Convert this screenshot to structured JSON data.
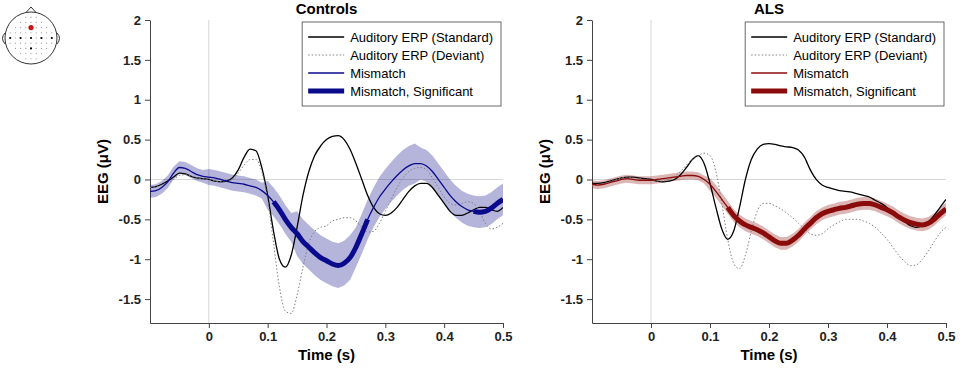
{
  "chart_data": [
    {
      "type": "line",
      "title": "Controls",
      "x_label": "Time (s)",
      "y_label": "EEG (μV)",
      "xlim": [
        -0.1,
        0.5
      ],
      "ylim": [
        -1.8,
        2
      ],
      "xticks": [
        0,
        0.1,
        0.2,
        0.3,
        0.4,
        0.5
      ],
      "yticks": [
        -1.5,
        -1,
        -0.5,
        0,
        0.5,
        1,
        1.5,
        2
      ],
      "vlines": [
        0
      ],
      "hlines": [
        0
      ],
      "legend": "upper right",
      "x": [
        -0.1,
        -0.09,
        -0.08,
        -0.07,
        -0.06,
        -0.05,
        -0.04,
        -0.03,
        -0.02,
        -0.01,
        0,
        0.01,
        0.02,
        0.03,
        0.04,
        0.05,
        0.06,
        0.07,
        0.08,
        0.09,
        0.1,
        0.11,
        0.12,
        0.13,
        0.14,
        0.15,
        0.16,
        0.17,
        0.18,
        0.19,
        0.2,
        0.21,
        0.22,
        0.23,
        0.24,
        0.25,
        0.26,
        0.27,
        0.28,
        0.29,
        0.3,
        0.31,
        0.32,
        0.33,
        0.34,
        0.35,
        0.36,
        0.37,
        0.38,
        0.39,
        0.4,
        0.41,
        0.42,
        0.43,
        0.44,
        0.45,
        0.46,
        0.47,
        0.48,
        0.49,
        0.5
      ],
      "series": [
        {
          "name": "Auditory ERP (Standard)",
          "color": "#000000",
          "line_style": "solid",
          "values": [
            -0.1,
            -0.09,
            -0.06,
            -0.02,
            0.03,
            0.08,
            0.07,
            0.04,
            0.02,
            0.01,
            0,
            -0.02,
            -0.03,
            -0.02,
            0.02,
            0.12,
            0.28,
            0.38,
            0.36,
            0.15,
            -0.2,
            -0.65,
            -1.0,
            -1.1,
            -0.95,
            -0.6,
            -0.2,
            0.1,
            0.3,
            0.42,
            0.5,
            0.54,
            0.55,
            0.5,
            0.38,
            0.2,
            0,
            -0.2,
            -0.35,
            -0.43,
            -0.45,
            -0.42,
            -0.35,
            -0.25,
            -0.15,
            -0.08,
            -0.05,
            -0.05,
            -0.1,
            -0.2,
            -0.3,
            -0.4,
            -0.45,
            -0.45,
            -0.42,
            -0.38,
            -0.35,
            -0.35,
            -0.38,
            -0.4,
            -0.35
          ]
        },
        {
          "name": "Auditory ERP (Deviant)",
          "color": "#808080",
          "line_style": "dotted",
          "values": [
            -0.1,
            -0.09,
            -0.07,
            -0.04,
            0,
            0.05,
            0.06,
            0.04,
            0.02,
            0.01,
            0,
            -0.02,
            -0.03,
            -0.03,
            0,
            0.08,
            0.18,
            0.25,
            0.25,
            0.1,
            -0.25,
            -0.8,
            -1.35,
            -1.65,
            -1.68,
            -1.45,
            -1.1,
            -0.8,
            -0.65,
            -0.6,
            -0.58,
            -0.52,
            -0.5,
            -0.48,
            -0.48,
            -0.52,
            -0.6,
            -0.66,
            -0.65,
            -0.55,
            -0.4,
            -0.25,
            -0.1,
            0.02,
            0.1,
            0.14,
            0.15,
            0.12,
            0.02,
            -0.1,
            -0.22,
            -0.3,
            -0.32,
            -0.3,
            -0.28,
            -0.3,
            -0.4,
            -0.55,
            -0.62,
            -0.6,
            -0.55
          ]
        },
        {
          "name": "Mismatch",
          "color": "#0a0a8c",
          "line_style": "solid",
          "values": [
            -0.15,
            -0.14,
            -0.1,
            -0.03,
            0.08,
            0.15,
            0.14,
            0.1,
            0.06,
            0.04,
            0.03,
            0.02,
            0,
            -0.02,
            -0.04,
            -0.05,
            -0.06,
            -0.08,
            -0.1,
            -0.14,
            -0.2,
            -0.28,
            -0.38,
            -0.5,
            -0.6,
            -0.68,
            -0.78,
            -0.85,
            -0.92,
            -0.98,
            -1.02,
            -1.06,
            -1.08,
            -1.05,
            -0.98,
            -0.85,
            -0.68,
            -0.5,
            -0.35,
            -0.22,
            -0.12,
            -0.03,
            0.05,
            0.12,
            0.17,
            0.2,
            0.2,
            0.17,
            0.1,
            0,
            -0.1,
            -0.2,
            -0.28,
            -0.34,
            -0.38,
            -0.4,
            -0.41,
            -0.4,
            -0.36,
            -0.3,
            -0.25
          ],
          "error": [
            0.08,
            0.08,
            0.08,
            0.08,
            0.08,
            0.08,
            0.08,
            0.08,
            0.08,
            0.08,
            0.1,
            0.1,
            0.1,
            0.1,
            0.1,
            0.1,
            0.1,
            0.1,
            0.1,
            0.1,
            0.18,
            0.18,
            0.18,
            0.18,
            0.18,
            0.28,
            0.28,
            0.28,
            0.28,
            0.28,
            0.28,
            0.28,
            0.28,
            0.28,
            0.28,
            0.25,
            0.25,
            0.25,
            0.25,
            0.25,
            0.25,
            0.25,
            0.25,
            0.25,
            0.25,
            0.25,
            0.2,
            0.2,
            0.2,
            0.2,
            0.2,
            0.2,
            0.2,
            0.2,
            0.2,
            0.2,
            0.2,
            0.2,
            0.2,
            0.2,
            0.2
          ]
        },
        {
          "name": "Mismatch, Significant",
          "color": "#0a0a8c",
          "line_style": "thick",
          "values": [
            null,
            null,
            null,
            null,
            null,
            null,
            null,
            null,
            null,
            null,
            null,
            null,
            null,
            null,
            null,
            null,
            null,
            null,
            null,
            null,
            null,
            -0.28,
            -0.38,
            -0.5,
            -0.6,
            -0.68,
            -0.78,
            -0.85,
            -0.92,
            -0.98,
            -1.02,
            -1.06,
            -1.08,
            -1.05,
            -0.98,
            -0.85,
            -0.68,
            -0.5,
            null,
            null,
            null,
            null,
            null,
            null,
            null,
            null,
            null,
            null,
            null,
            null,
            null,
            null,
            null,
            null,
            null,
            -0.4,
            -0.41,
            -0.4,
            -0.36,
            -0.3,
            -0.25
          ]
        }
      ]
    },
    {
      "type": "line",
      "title": "ALS",
      "x_label": "Time (s)",
      "y_label": "EEG (μV)",
      "xlim": [
        -0.1,
        0.5
      ],
      "ylim": [
        -1.8,
        2
      ],
      "xticks": [
        0,
        0.1,
        0.2,
        0.3,
        0.4,
        0.5
      ],
      "yticks": [
        -1.5,
        -1,
        -0.5,
        0,
        0.5,
        1,
        1.5,
        2
      ],
      "vlines": [
        0
      ],
      "hlines": [
        0
      ],
      "legend": "upper right",
      "x": [
        -0.1,
        -0.09,
        -0.08,
        -0.07,
        -0.06,
        -0.05,
        -0.04,
        -0.03,
        -0.02,
        -0.01,
        0,
        0.01,
        0.02,
        0.03,
        0.04,
        0.05,
        0.06,
        0.07,
        0.08,
        0.09,
        0.1,
        0.11,
        0.12,
        0.13,
        0.14,
        0.15,
        0.16,
        0.17,
        0.18,
        0.19,
        0.2,
        0.21,
        0.22,
        0.23,
        0.24,
        0.25,
        0.26,
        0.27,
        0.28,
        0.29,
        0.3,
        0.31,
        0.32,
        0.33,
        0.34,
        0.35,
        0.36,
        0.37,
        0.38,
        0.39,
        0.4,
        0.41,
        0.42,
        0.43,
        0.44,
        0.45,
        0.46,
        0.47,
        0.48,
        0.49,
        0.5
      ],
      "series": [
        {
          "name": "Auditory ERP (Standard)",
          "color": "#000000",
          "line_style": "solid",
          "values": [
            -0.05,
            -0.05,
            -0.04,
            -0.02,
            0,
            0.02,
            0.03,
            0.03,
            0.02,
            0.01,
            0,
            -0.02,
            -0.03,
            -0.02,
            0,
            0.06,
            0.15,
            0.25,
            0.3,
            0.2,
            -0.05,
            -0.35,
            -0.62,
            -0.75,
            -0.65,
            -0.35,
            0,
            0.25,
            0.38,
            0.44,
            0.45,
            0.44,
            0.42,
            0.41,
            0.4,
            0.37,
            0.28,
            0.12,
            0,
            -0.07,
            -0.1,
            -0.12,
            -0.14,
            -0.15,
            -0.16,
            -0.18,
            -0.2,
            -0.22,
            -0.26,
            -0.3,
            -0.35,
            -0.42,
            -0.48,
            -0.53,
            -0.58,
            -0.6,
            -0.58,
            -0.53,
            -0.45,
            -0.35,
            -0.25
          ]
        },
        {
          "name": "Auditory ERP (Deviant)",
          "color": "#808080",
          "line_style": "dotted",
          "values": [
            -0.08,
            -0.07,
            -0.05,
            -0.02,
            0,
            0.02,
            0.03,
            0.02,
            0.01,
            0,
            -0.01,
            -0.02,
            -0.02,
            0,
            0.04,
            0.1,
            0.18,
            0.25,
            0.3,
            0.33,
            0.3,
            0.1,
            -0.3,
            -0.75,
            -1.05,
            -1.12,
            -0.95,
            -0.65,
            -0.4,
            -0.3,
            -0.3,
            -0.33,
            -0.37,
            -0.42,
            -0.48,
            -0.55,
            -0.62,
            -0.68,
            -0.7,
            -0.68,
            -0.62,
            -0.57,
            -0.53,
            -0.5,
            -0.5,
            -0.5,
            -0.52,
            -0.55,
            -0.6,
            -0.67,
            -0.75,
            -0.85,
            -0.95,
            -1.03,
            -1.08,
            -1.07,
            -1.0,
            -0.9,
            -0.78,
            -0.67,
            -0.6
          ]
        },
        {
          "name": "Mismatch",
          "color": "#8b0a0a",
          "line_style": "solid",
          "values": [
            -0.06,
            -0.07,
            -0.06,
            -0.04,
            -0.02,
            0,
            0.01,
            0,
            -0.01,
            -0.01,
            -0.01,
            0,
            0.01,
            0.02,
            0.03,
            0.04,
            0.05,
            0.05,
            0.04,
            0,
            -0.06,
            -0.15,
            -0.25,
            -0.35,
            -0.45,
            -0.52,
            -0.57,
            -0.6,
            -0.63,
            -0.67,
            -0.72,
            -0.77,
            -0.8,
            -0.8,
            -0.76,
            -0.7,
            -0.62,
            -0.55,
            -0.48,
            -0.43,
            -0.4,
            -0.38,
            -0.36,
            -0.35,
            -0.33,
            -0.31,
            -0.3,
            -0.3,
            -0.32,
            -0.35,
            -0.38,
            -0.42,
            -0.47,
            -0.51,
            -0.54,
            -0.56,
            -0.57,
            -0.55,
            -0.5,
            -0.43,
            -0.37
          ],
          "error": [
            0.05,
            0.05,
            0.05,
            0.05,
            0.05,
            0.05,
            0.05,
            0.05,
            0.05,
            0.05,
            0.05,
            0.05,
            0.05,
            0.05,
            0.05,
            0.05,
            0.05,
            0.05,
            0.05,
            0.05,
            0.08,
            0.08,
            0.08,
            0.08,
            0.08,
            0.08,
            0.08,
            0.08,
            0.08,
            0.08,
            0.08,
            0.08,
            0.08,
            0.08,
            0.08,
            0.08,
            0.08,
            0.08,
            0.08,
            0.08,
            0.08,
            0.08,
            0.08,
            0.08,
            0.08,
            0.08,
            0.08,
            0.08,
            0.08,
            0.08,
            0.08,
            0.08,
            0.08,
            0.08,
            0.08,
            0.08,
            0.08,
            0.08,
            0.08,
            0.08,
            0.08
          ]
        },
        {
          "name": "Mismatch, Significant",
          "color": "#8b0a0a",
          "line_style": "thick",
          "values": [
            null,
            null,
            null,
            null,
            null,
            null,
            null,
            null,
            null,
            null,
            null,
            null,
            null,
            null,
            null,
            null,
            null,
            null,
            null,
            null,
            null,
            null,
            null,
            -0.35,
            -0.45,
            -0.52,
            -0.57,
            -0.6,
            -0.63,
            -0.67,
            -0.72,
            -0.77,
            -0.8,
            -0.8,
            -0.76,
            -0.7,
            -0.62,
            -0.55,
            -0.48,
            -0.43,
            -0.4,
            -0.38,
            -0.36,
            -0.35,
            -0.33,
            -0.31,
            -0.3,
            -0.3,
            -0.32,
            -0.35,
            -0.38,
            -0.42,
            -0.47,
            -0.51,
            -0.54,
            -0.56,
            -0.57,
            -0.55,
            -0.5,
            -0.43,
            -0.37
          ]
        }
      ]
    }
  ]
}
